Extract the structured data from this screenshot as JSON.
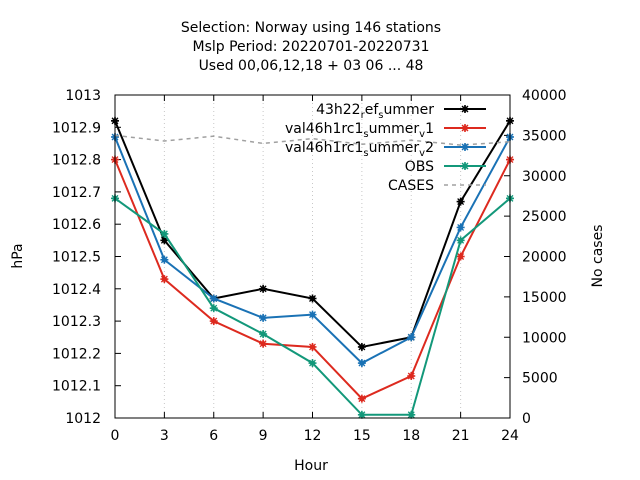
{
  "title_lines": [
    "Selection: Norway using   146 stations",
    "Mslp   Period: 20220701-20220731",
    "Used  00,06,12,18 + 03 06 ... 48"
  ],
  "chart_data": {
    "type": "line",
    "xlabel": "Hour",
    "ylabel": "hPa",
    "y2label": "No cases",
    "x": [
      0,
      3,
      6,
      9,
      12,
      15,
      18,
      21,
      24
    ],
    "xticks": [
      "0",
      "3",
      "6",
      "9",
      "12",
      "15",
      "18",
      "21",
      "24"
    ],
    "ylim": [
      1012,
      1013
    ],
    "yticks": [
      "1012",
      "1012.1",
      "1012.2",
      "1012.3",
      "1012.4",
      "1012.5",
      "1012.6",
      "1012.7",
      "1012.8",
      "1012.9",
      "1013"
    ],
    "y2lim": [
      0,
      40000
    ],
    "y2ticks": [
      "0",
      "5000",
      "10000",
      "15000",
      "20000",
      "25000",
      "30000",
      "35000",
      "40000"
    ],
    "grid": "x only, dotted",
    "legend_position": "top-right",
    "series": [
      {
        "name": "43h22_ref_summer",
        "label_parts": [
          "43h22",
          "r",
          "ef",
          "s",
          "ummer",
          ""
        ],
        "color": "#000000",
        "axis": "left",
        "values": [
          1012.92,
          1012.55,
          1012.37,
          1012.4,
          1012.37,
          1012.22,
          1012.25,
          1012.67,
          1012.92
        ]
      },
      {
        "name": "val46h1rc1_summer_v1",
        "label_parts": [
          "val46h1rc1",
          "s",
          "ummer",
          "v",
          "1",
          ""
        ],
        "color": "#dd2a1f",
        "axis": "left",
        "values": [
          1012.8,
          1012.43,
          1012.3,
          1012.23,
          1012.22,
          1012.06,
          1012.13,
          1012.5,
          1012.8
        ]
      },
      {
        "name": "val46h1rc1_summer_v2",
        "label_parts": [
          "val46h1rc1",
          "s",
          "ummer",
          "v",
          "2",
          ""
        ],
        "color": "#1a72b5",
        "axis": "left",
        "values": [
          1012.87,
          1012.49,
          1012.37,
          1012.31,
          1012.32,
          1012.17,
          1012.25,
          1012.59,
          1012.87
        ]
      },
      {
        "name": "OBS",
        "color": "#13987a",
        "axis": "left",
        "values": [
          1012.68,
          1012.57,
          1012.34,
          1012.26,
          1012.17,
          1012.01,
          1012.01,
          1012.55,
          1012.68
        ]
      },
      {
        "name": "CASES",
        "color": "#a0a0a0",
        "axis": "right",
        "style": "dashed",
        "values": [
          35000,
          34300,
          34900,
          34000,
          34600,
          33900,
          34400,
          33800,
          34200
        ]
      }
    ]
  }
}
